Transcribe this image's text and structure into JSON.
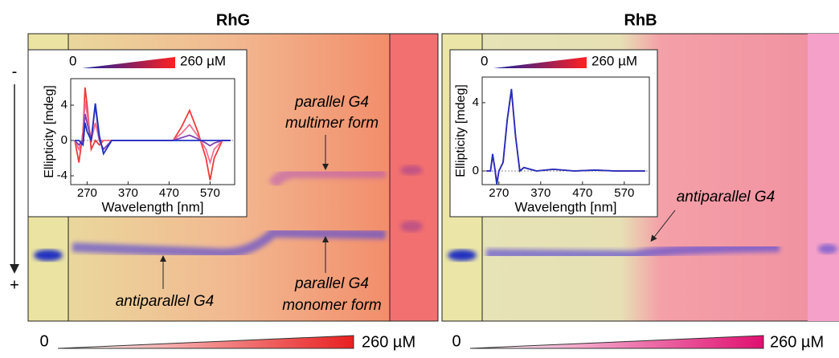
{
  "polarity": {
    "minus": "-",
    "plus": "+"
  },
  "panels": [
    {
      "title": "RhG",
      "gradient_start": "0",
      "gradient_end": "260 µM",
      "annotations": [
        "parallel G4",
        "multimer form",
        "parallel G4",
        "monomer form",
        "antiparallel G4"
      ],
      "inset": {
        "type": "line",
        "xlabel": "Wavelength [nm]",
        "ylabel": "Ellipticity [mdeg]",
        "legend_start": "0",
        "legend_end": "260 µM",
        "xlim": [
          230,
          630
        ],
        "ylim": [
          -5,
          7
        ],
        "xticks": [
          270,
          370,
          470,
          570
        ],
        "yticks": [
          -4,
          0,
          4
        ],
        "x": [
          240,
          250,
          260,
          265,
          270,
          280,
          290,
          300,
          310,
          330,
          400,
          480,
          500,
          520,
          540,
          560,
          570,
          580,
          600,
          620
        ],
        "series": [
          {
            "color": "#f03a3a",
            "values": [
              0,
              -2.5,
              1,
              6,
              4,
              -1,
              0,
              -0.5,
              0,
              0,
              0,
              0,
              1.5,
              3.4,
              1,
              -2,
              -4.5,
              -2,
              0,
              0
            ]
          },
          {
            "color": "#f07090",
            "values": [
              0,
              -1,
              0.5,
              4.5,
              3,
              0,
              2,
              0,
              0,
              0,
              0,
              0,
              0.8,
              1.8,
              0.5,
              -1,
              -2.5,
              -1,
              0,
              0
            ]
          },
          {
            "color": "#8040b0",
            "values": [
              0,
              -0.5,
              0,
              3,
              2,
              0,
              4,
              0,
              -1,
              0,
              0,
              0,
              0.3,
              0.6,
              0.2,
              -0.3,
              -0.6,
              -0.3,
              0,
              0
            ]
          },
          {
            "color": "#2030c0",
            "values": [
              0,
              0,
              -0.5,
              2,
              1,
              0,
              4.2,
              0.5,
              -1.5,
              0,
              0,
              0,
              0,
              0,
              0,
              0,
              0,
              0,
              0,
              0
            ]
          }
        ]
      }
    },
    {
      "title": "RhB",
      "gradient_start": "0",
      "gradient_end": "260 µM",
      "annotations": [
        "antiparallel G4"
      ],
      "inset": {
        "type": "line",
        "xlabel": "Wavelength [nm]",
        "ylabel": "Ellipticity [mdeg]",
        "legend_start": "0",
        "legend_end": "260 µM",
        "xlim": [
          230,
          630
        ],
        "ylim": [
          -0.8,
          5.5
        ],
        "xticks": [
          270,
          370,
          470,
          570
        ],
        "yticks": [
          0,
          4
        ],
        "x": [
          240,
          250,
          255,
          260,
          265,
          270,
          280,
          290,
          300,
          310,
          320,
          330,
          360,
          400,
          450,
          500,
          550,
          600,
          620
        ],
        "series": [
          {
            "color": "#e03050",
            "values": [
              0,
              0,
              0.9,
              0.2,
              -0.7,
              0,
              0.5,
              3,
              4.7,
              2,
              0,
              0.2,
              0,
              0.1,
              0,
              0.05,
              0,
              0,
              0
            ]
          },
          {
            "color": "#2030c0",
            "values": [
              0,
              0,
              1,
              0.2,
              -0.8,
              0,
              0.5,
              3,
              4.8,
              2,
              0,
              0.2,
              0,
              0.1,
              0,
              0.05,
              0,
              0,
              0
            ]
          }
        ]
      }
    }
  ]
}
